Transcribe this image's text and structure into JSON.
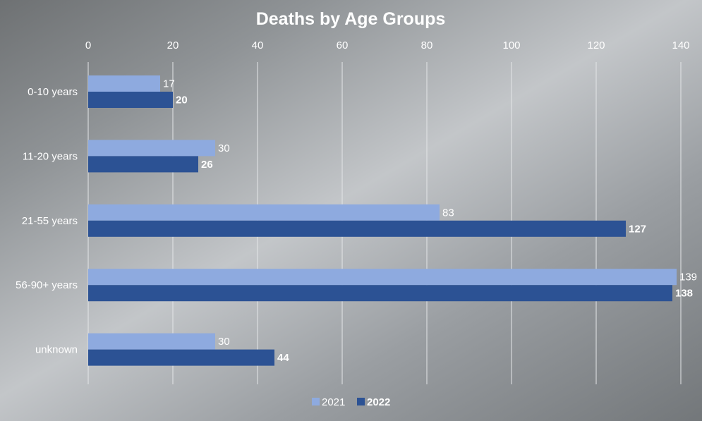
{
  "chart_data": {
    "type": "bar",
    "orientation": "horizontal",
    "title": "Deaths by Age Groups",
    "categories": [
      "0-10 years",
      "11-20 years",
      "21-55 years",
      "56-90+ years",
      "unknown"
    ],
    "series": [
      {
        "name": "2021",
        "values": [
          17,
          30,
          83,
          139,
          30
        ],
        "color": "#8eaadf",
        "label_bold": false
      },
      {
        "name": "2022",
        "values": [
          20,
          26,
          127,
          138,
          44
        ],
        "color": "#2c5294",
        "label_bold": true
      }
    ],
    "xlim": [
      0,
      140
    ],
    "x_ticks": [
      "0",
      "20",
      "40",
      "60",
      "80",
      "100",
      "120",
      "140"
    ],
    "tick_position": "top",
    "grid": true,
    "legend_position": "bottom"
  }
}
